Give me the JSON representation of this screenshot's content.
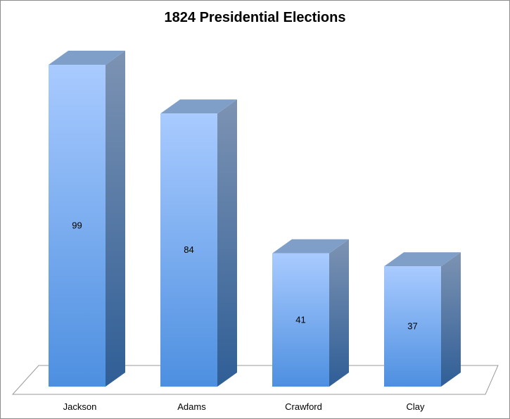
{
  "chart_data": {
    "type": "bar",
    "title": "1824 Presidential Elections",
    "xlabel": "",
    "ylabel": "",
    "categories": [
      "Jackson",
      "Adams",
      "Crawford",
      "Clay"
    ],
    "values": [
      99,
      84,
      41,
      37
    ],
    "ylim": [
      0,
      99
    ],
    "grid": false,
    "legend": "none",
    "style": "3d-column"
  },
  "colors": {
    "bar_front_top": "#a9cbff",
    "bar_front_bottom": "#4d8fe0",
    "bar_top": "#7f9fc8",
    "bar_side_top": "#7d93b3",
    "bar_side_bottom": "#2f5e96",
    "floor_stroke": "#9a9a9a"
  }
}
